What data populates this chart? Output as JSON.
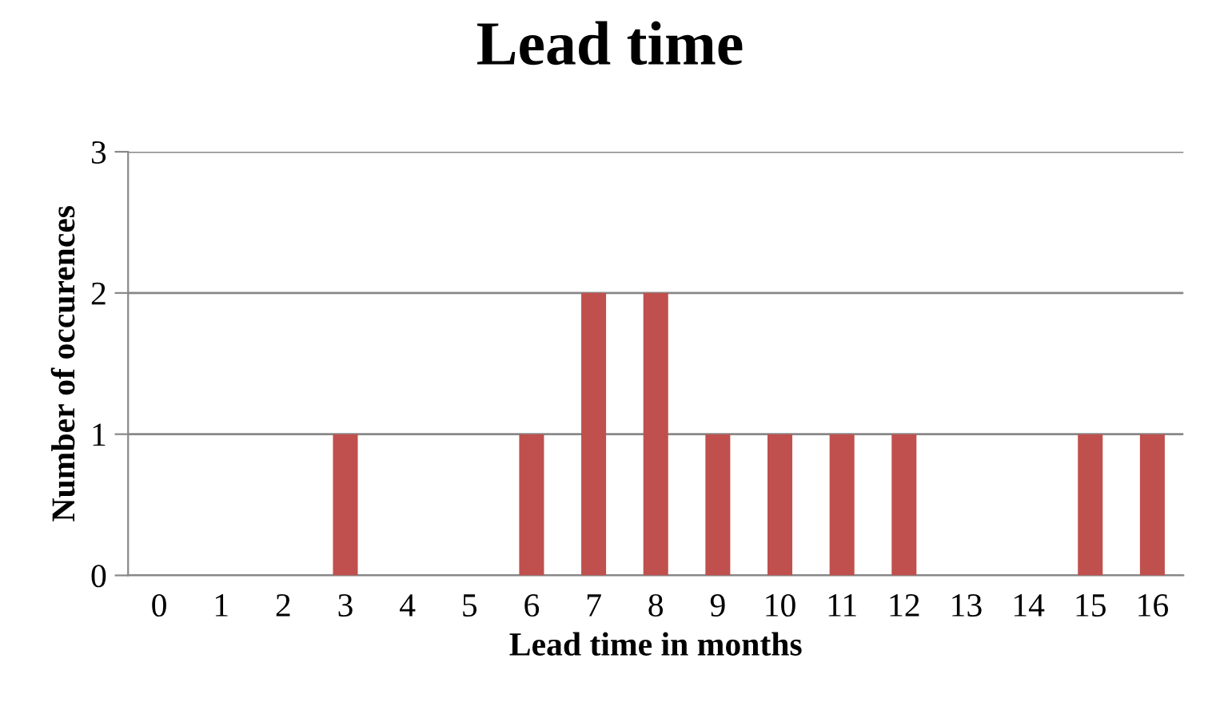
{
  "chart_data": {
    "type": "bar",
    "title": "Lead time",
    "xlabel": "Lead time in months",
    "ylabel": "Number of occurences",
    "categories": [
      "0",
      "1",
      "2",
      "3",
      "4",
      "5",
      "6",
      "7",
      "8",
      "9",
      "10",
      "11",
      "12",
      "13",
      "14",
      "15",
      "16"
    ],
    "values": [
      0,
      0,
      0,
      1,
      0,
      0,
      1,
      2,
      2,
      1,
      1,
      1,
      1,
      0,
      0,
      1,
      1
    ],
    "color": "#c0504d",
    "ylim": [
      0,
      3
    ],
    "yticks": [
      0,
      1,
      2,
      3
    ],
    "grid": "y",
    "legend": false
  }
}
